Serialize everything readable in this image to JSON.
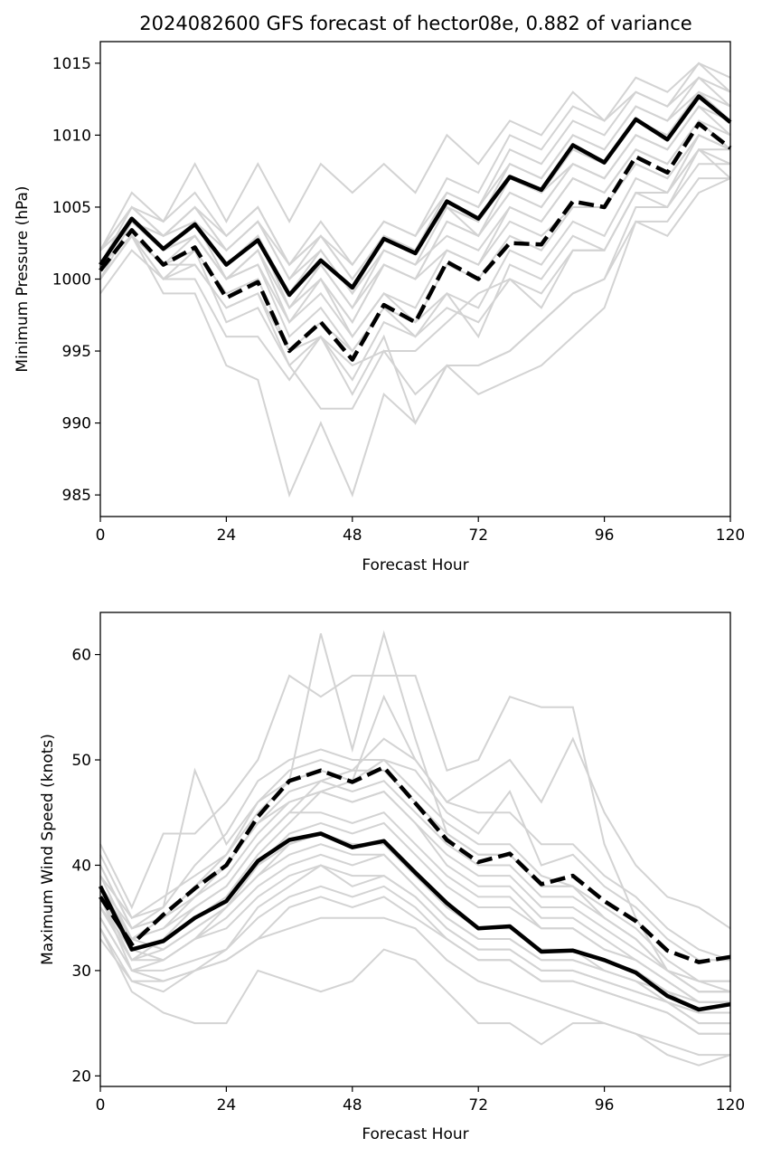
{
  "chart_data": [
    {
      "type": "line",
      "title": "2024082600 GFS forecast of hector08e, 0.882 of variance",
      "xlabel": "Forecast Hour",
      "ylabel": "Minimum Pressure (hPa)",
      "xlim": [
        0,
        120
      ],
      "ylim": [
        983.5,
        1016.5
      ],
      "xticks": [
        0,
        24,
        48,
        72,
        96,
        120
      ],
      "yticks": [
        985,
        990,
        995,
        1000,
        1005,
        1010,
        1015
      ],
      "grid": false,
      "x": [
        0,
        6,
        12,
        18,
        24,
        30,
        36,
        42,
        48,
        54,
        60,
        66,
        72,
        78,
        84,
        90,
        96,
        102,
        108,
        114,
        120
      ],
      "series": [
        {
          "role": "mean",
          "style": "solid",
          "color": "#000000",
          "values": [
            1001.0,
            1004.2,
            1002.1,
            1003.8,
            1001.0,
            1002.7,
            998.9,
            1001.3,
            999.4,
            1002.8,
            1001.8,
            1005.4,
            1004.2,
            1007.1,
            1006.2,
            1009.3,
            1008.1,
            1011.1,
            1009.7,
            1012.7,
            1010.9
          ]
        },
        {
          "role": "weighted",
          "style": "dashed",
          "color": "#000000",
          "values": [
            1000.6,
            1003.4,
            1001.0,
            1002.2,
            998.7,
            999.8,
            995.0,
            997.0,
            994.4,
            998.2,
            997.0,
            1001.2,
            1000.0,
            1002.5,
            1002.4,
            1005.4,
            1005.0,
            1008.5,
            1007.4,
            1010.8,
            1009.1
          ]
        }
      ],
      "members": [
        [
          1001,
          1005,
          1003,
          1005,
          1002,
          1004,
          1001,
          1003,
          1001,
          1004,
          1003,
          1006,
          1005,
          1008,
          1007,
          1010,
          1009,
          1012,
          1011,
          1014,
          1012
        ],
        [
          1000,
          1004,
          1002,
          1003,
          1000,
          1002,
          997,
          1000,
          997,
          1001,
          1000,
          1004,
          1003,
          1006,
          1005,
          1008,
          1007,
          1010,
          1009,
          1012,
          1010
        ],
        [
          1002,
          1005,
          1004,
          1006,
          1003,
          1005,
          1001,
          1003,
          1000,
          1003,
          1002,
          1006,
          1005,
          1009,
          1008,
          1011,
          1010,
          1013,
          1012,
          1015,
          1013
        ],
        [
          1001,
          1004,
          1002,
          1004,
          1001,
          1003,
          999,
          1001,
          998,
          1002,
          1001,
          1005,
          1003,
          1007,
          1006,
          1009,
          1008,
          1011,
          1010,
          1013,
          1011
        ],
        [
          1002,
          1006,
          1004,
          1008,
          1004,
          1008,
          1004,
          1008,
          1006,
          1008,
          1006,
          1010,
          1008,
          1011,
          1010,
          1013,
          1011,
          1014,
          1013,
          1015,
          1014
        ],
        [
          1001,
          1004,
          1003,
          1005,
          1002,
          1004,
          1000,
          1002,
          999,
          1002,
          1001,
          1003,
          1002,
          1005,
          1004,
          1007,
          1006,
          1009,
          1008,
          1011,
          1009
        ],
        [
          1000,
          1003,
          1001,
          1002,
          999,
          1000,
          995,
          997,
          995,
          998,
          997,
          999,
          996,
          1001,
          1000,
          1003,
          1002,
          1006,
          1005,
          1009,
          1007
        ],
        [
          1001,
          1004,
          1002,
          1004,
          1000,
          1002,
          998,
          1000,
          997,
          1001,
          1000,
          1002,
          1001,
          1004,
          1003,
          1005,
          1005,
          1008,
          1007,
          1010,
          1009
        ],
        [
          1000,
          1003,
          1000,
          1002,
          997,
          998,
          994,
          996,
          993,
          997,
          996,
          998,
          997,
          1000,
          999,
          1002,
          1002,
          1006,
          1006,
          1009,
          1008
        ],
        [
          1001,
          1003,
          1001,
          1001,
          998,
          999,
          994,
          991,
          991,
          995,
          992,
          994,
          994,
          995,
          997,
          999,
          1000,
          1005,
          1005,
          1008,
          1008
        ],
        [
          999,
          1002,
          1000,
          1000,
          996,
          996,
          993,
          996,
          994,
          995,
          995,
          997,
          999,
          1000,
          998,
          1002,
          1002,
          1006,
          1006,
          1009,
          1009
        ],
        [
          1000,
          1003,
          999,
          999,
          994,
          993,
          985,
          990,
          985,
          992,
          990,
          994,
          994,
          995,
          997,
          999,
          1000,
          1004,
          1004,
          1007,
          1007
        ],
        [
          1001,
          1003,
          1000,
          1001,
          998,
          999,
          995,
          996,
          992,
          996,
          990,
          994,
          992,
          993,
          994,
          996,
          998,
          1004,
          1003,
          1006,
          1007
        ],
        [
          1002,
          1004,
          1002,
          1003,
          1000,
          1001,
          997,
          999,
          996,
          999,
          997,
          1001,
          1000,
          1003,
          1002,
          1005,
          1005,
          1008,
          1007,
          1010,
          1009
        ],
        [
          1001,
          1004,
          1003,
          1004,
          1001,
          1003,
          999,
          1002,
          999,
          1003,
          1002,
          1005,
          1004,
          1007,
          1006,
          1008,
          1007,
          1010,
          1009,
          1012,
          1011
        ],
        [
          1002,
          1005,
          1003,
          1005,
          1003,
          1005,
          1001,
          1004,
          1001,
          1004,
          1003,
          1007,
          1006,
          1010,
          1009,
          1012,
          1011,
          1013,
          1012,
          1014,
          1013
        ],
        [
          1000,
          1003,
          1001,
          1003,
          1000,
          1001,
          996,
          998,
          995,
          998,
          996,
          999,
          998,
          1002,
          1001,
          1004,
          1003,
          1007,
          1006,
          1010,
          1009
        ],
        [
          1001,
          1004,
          1002,
          1003,
          1000,
          1002,
          998,
          1000,
          996,
          999,
          998,
          1002,
          1001,
          1005,
          1004,
          1007,
          1006,
          1009,
          1008,
          1011,
          1010
        ],
        [
          1002,
          1005,
          1003,
          1004,
          1002,
          1004,
          1000,
          1003,
          1000,
          1003,
          1002,
          1005,
          1004,
          1008,
          1007,
          1010,
          1009,
          1012,
          1011,
          1013,
          1012
        ],
        [
          1001,
          1004,
          1002,
          1004,
          1001,
          1003,
          998,
          1001,
          998,
          1001,
          1000,
          1004,
          1003,
          1006,
          1005,
          1008,
          1007,
          1010,
          1009,
          1012,
          1011
        ]
      ]
    },
    {
      "type": "line",
      "title": "",
      "xlabel": "Forecast Hour",
      "ylabel": "Maximum Wind Speed (knots)",
      "xlim": [
        0,
        120
      ],
      "ylim": [
        19,
        64
      ],
      "xticks": [
        0,
        24,
        48,
        72,
        96,
        120
      ],
      "yticks": [
        20,
        30,
        40,
        50,
        60
      ],
      "grid": false,
      "x": [
        0,
        6,
        12,
        18,
        24,
        30,
        36,
        42,
        48,
        54,
        60,
        66,
        72,
        78,
        84,
        90,
        96,
        102,
        108,
        114,
        120
      ],
      "series": [
        {
          "role": "mean",
          "style": "solid",
          "color": "#000000",
          "values": [
            38.0,
            32.0,
            32.8,
            35.0,
            36.6,
            40.4,
            42.4,
            43.0,
            41.7,
            42.3,
            39.3,
            36.4,
            34.0,
            34.2,
            31.8,
            31.9,
            31.0,
            29.8,
            27.6,
            26.3,
            26.8
          ]
        },
        {
          "role": "weighted",
          "style": "dashed",
          "color": "#000000",
          "values": [
            37.0,
            32.5,
            35.3,
            37.8,
            40.0,
            44.6,
            48.0,
            49.0,
            47.9,
            49.3,
            45.9,
            42.4,
            40.3,
            41.1,
            38.2,
            39.0,
            36.6,
            34.7,
            31.9,
            30.8,
            31.3
          ]
        }
      ],
      "members": [
        [
          38,
          33,
          34,
          37,
          39,
          43,
          46,
          47,
          46,
          47,
          44,
          40,
          38,
          38,
          35,
          35,
          33,
          31,
          29,
          27,
          27
        ],
        [
          36,
          31,
          32,
          34,
          36,
          39,
          41,
          42,
          41,
          41,
          38,
          35,
          33,
          33,
          31,
          31,
          30,
          29,
          27,
          26,
          26
        ],
        [
          40,
          34,
          36,
          40,
          43,
          48,
          50,
          51,
          50,
          50,
          47,
          44,
          42,
          42,
          39,
          38,
          36,
          34,
          31,
          29,
          29
        ],
        [
          37,
          32,
          33,
          35,
          37,
          40,
          42,
          43,
          42,
          42,
          39,
          36,
          34,
          34,
          32,
          32,
          31,
          30,
          28,
          27,
          27
        ],
        [
          42,
          36,
          43,
          43,
          46,
          50,
          58,
          56,
          58,
          58,
          58,
          49,
          50,
          56,
          55,
          55,
          42,
          35,
          30,
          29,
          28
        ],
        [
          35,
          30,
          30,
          31,
          32,
          36,
          38,
          40,
          38,
          39,
          37,
          34,
          32,
          32,
          30,
          30,
          29,
          28,
          27,
          25,
          25
        ],
        [
          39,
          33,
          34,
          36,
          38,
          42,
          45,
          45,
          44,
          45,
          42,
          39,
          37,
          37,
          34,
          34,
          32,
          31,
          29,
          27,
          27
        ],
        [
          36,
          32,
          31,
          33,
          35,
          38,
          40,
          41,
          40,
          41,
          38,
          35,
          33,
          33,
          31,
          31,
          30,
          29,
          28,
          26,
          26
        ],
        [
          41,
          35,
          37,
          39,
          41,
          46,
          49,
          50,
          49,
          49,
          46,
          43,
          41,
          41,
          38,
          38,
          35,
          33,
          30,
          28,
          28
        ],
        [
          37,
          33,
          32,
          34,
          36,
          39,
          42,
          43,
          42,
          42,
          39,
          36,
          34,
          34,
          32,
          32,
          30,
          29,
          27,
          26,
          26
        ],
        [
          34,
          29,
          29,
          30,
          31,
          33,
          36,
          37,
          36,
          37,
          35,
          33,
          31,
          31,
          29,
          29,
          28,
          27,
          26,
          24,
          24
        ],
        [
          38,
          34,
          35,
          37,
          40,
          44,
          47,
          48,
          47,
          48,
          45,
          42,
          40,
          40,
          37,
          37,
          35,
          33,
          30,
          28,
          28
        ],
        [
          38,
          33,
          35,
          38,
          41,
          45,
          48,
          62,
          51,
          62,
          52,
          43,
          41,
          41,
          38,
          38,
          35,
          33,
          30,
          29,
          29
        ],
        [
          36,
          31,
          33,
          35,
          37,
          41,
          44,
          47,
          48,
          56,
          50,
          46,
          48,
          50,
          46,
          52,
          45,
          40,
          37,
          36,
          34
        ],
        [
          35,
          30,
          31,
          33,
          36,
          40,
          43,
          44,
          43,
          44,
          41,
          38,
          36,
          36,
          34,
          34,
          32,
          31,
          29,
          27,
          27
        ],
        [
          33,
          29,
          28,
          30,
          32,
          35,
          37,
          38,
          37,
          38,
          36,
          33,
          31,
          31,
          29,
          29,
          28,
          27,
          26,
          24,
          24
        ],
        [
          39,
          35,
          36,
          49,
          42,
          46,
          48,
          49,
          48,
          50,
          49,
          45,
          43,
          47,
          40,
          41,
          38,
          36,
          33,
          31,
          31
        ],
        [
          36,
          32,
          33,
          36,
          38,
          42,
          45,
          48,
          49,
          52,
          50,
          46,
          45,
          45,
          42,
          42,
          39,
          37,
          34,
          32,
          31
        ],
        [
          37,
          31,
          31,
          33,
          34,
          37,
          39,
          40,
          39,
          39,
          37,
          34,
          32,
          32,
          30,
          30,
          29,
          28,
          27,
          25,
          25
        ],
        [
          40,
          34,
          35,
          38,
          40,
          44,
          46,
          47,
          46,
          47,
          44,
          41,
          39,
          39,
          36,
          36,
          34,
          32,
          30,
          28,
          28
        ],
        [
          34,
          28,
          26,
          25,
          25,
          30,
          29,
          28,
          29,
          32,
          31,
          28,
          25,
          25,
          23,
          25,
          25,
          24,
          22,
          21,
          22
        ],
        [
          37,
          30,
          29,
          30,
          31,
          33,
          34,
          35,
          35,
          35,
          34,
          31,
          29,
          28,
          27,
          26,
          25,
          24,
          23,
          22,
          22
        ]
      ]
    }
  ]
}
